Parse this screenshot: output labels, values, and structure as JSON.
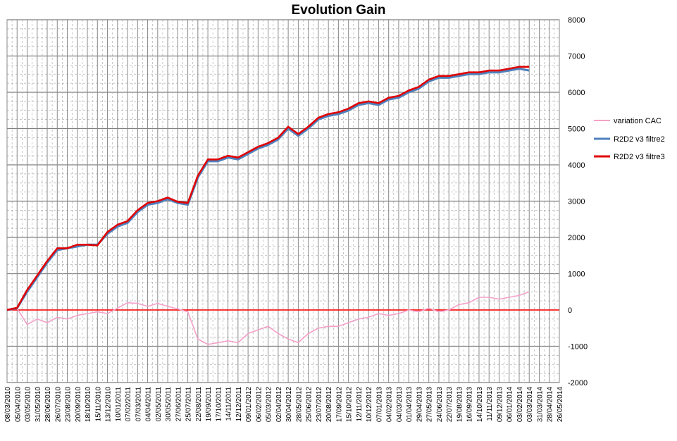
{
  "chart_data": {
    "type": "line",
    "title": "Evolution Gain",
    "xlabel": "",
    "ylabel": "",
    "ylim": [
      -2000,
      8000
    ],
    "y_ticks": [
      8000,
      7000,
      6000,
      5000,
      4000,
      3000,
      2000,
      1000,
      0,
      -1000,
      -2000
    ],
    "y_axis_position": "right",
    "x_tick_labels": [
      "08/03/2010",
      "05/04/2010",
      "03/05/2010",
      "31/05/2010",
      "28/06/2010",
      "26/07/2010",
      "23/08/2010",
      "20/09/2010",
      "18/10/2010",
      "15/11/2010",
      "13/12/2010",
      "10/01/2011",
      "07/02/2011",
      "07/03/2011",
      "04/04/2011",
      "02/05/2011",
      "30/05/2011",
      "27/06/2011",
      "25/07/2011",
      "22/08/2011",
      "19/09/2011",
      "17/10/2011",
      "14/11/2011",
      "12/12/2011",
      "09/01/2012",
      "06/02/2012",
      "05/03/2012",
      "02/04/2012",
      "30/04/2012",
      "28/05/2012",
      "25/06/2012",
      "23/07/2012",
      "20/08/2012",
      "17/09/2012",
      "15/10/2012",
      "12/11/2012",
      "10/12/2012",
      "07/01/2013",
      "04/02/2013",
      "04/03/2013",
      "01/04/2013",
      "29/04/2013",
      "27/05/2013",
      "24/06/2013",
      "22/07/2013",
      "19/08/2013",
      "16/09/2013",
      "14/10/2013",
      "11/11/2013",
      "09/12/2013",
      "06/01/2014",
      "03/02/2014",
      "03/03/2014",
      "31/03/2014",
      "28/04/2014",
      "26/05/2014"
    ],
    "x": [
      0,
      1,
      2,
      3,
      4,
      5,
      6,
      7,
      8,
      9,
      10,
      11,
      12,
      13,
      14,
      15,
      16,
      17,
      18,
      19,
      20,
      21,
      22,
      23,
      24,
      25,
      26,
      27,
      28,
      29,
      30,
      31,
      32,
      33,
      34,
      35,
      36,
      37,
      38,
      39,
      40,
      41,
      42,
      43,
      44,
      45,
      46,
      47,
      48,
      49,
      50,
      51,
      52
    ],
    "xlim": [
      0,
      55
    ],
    "grid": true,
    "legend_position": "right",
    "series": [
      {
        "name": "variation CAC",
        "color": "#f4a0c8",
        "values": [
          0,
          40,
          -400,
          -250,
          -350,
          -200,
          -250,
          -150,
          -100,
          -50,
          -100,
          50,
          200,
          180,
          100,
          180,
          100,
          30,
          -50,
          -800,
          -950,
          -900,
          -850,
          -900,
          -650,
          -550,
          -450,
          -650,
          -800,
          -900,
          -650,
          -500,
          -450,
          -450,
          -350,
          -250,
          -200,
          -100,
          -150,
          -100,
          0,
          -50,
          50,
          -50,
          0,
          150,
          200,
          350,
          350,
          300,
          350,
          400,
          500
        ]
      },
      {
        "name": "R2D2 v3 filtre2",
        "color": "#4f81bd",
        "values": [
          0,
          50,
          500,
          900,
          1300,
          1650,
          1700,
          1750,
          1800,
          1800,
          2100,
          2300,
          2400,
          2700,
          2900,
          2950,
          3050,
          2950,
          2900,
          3650,
          4100,
          4100,
          4200,
          4150,
          4300,
          4450,
          4550,
          4700,
          5000,
          4800,
          5000,
          5250,
          5350,
          5400,
          5500,
          5650,
          5700,
          5650,
          5800,
          5850,
          6000,
          6100,
          6300,
          6400,
          6400,
          6450,
          6500,
          6500,
          6550,
          6550,
          6600,
          6650,
          6600
        ]
      },
      {
        "name": "R2D2 v3 filtre3",
        "color": "#e00000",
        "values": [
          0,
          60,
          550,
          950,
          1350,
          1700,
          1700,
          1800,
          1800,
          1780,
          2150,
          2350,
          2450,
          2750,
          2950,
          3000,
          3100,
          2980,
          2950,
          3700,
          4150,
          4150,
          4250,
          4200,
          4350,
          4500,
          4600,
          4750,
          5050,
          4850,
          5050,
          5300,
          5400,
          5450,
          5550,
          5700,
          5750,
          5700,
          5850,
          5900,
          6050,
          6150,
          6350,
          6450,
          6450,
          6500,
          6550,
          6550,
          6600,
          6600,
          6650,
          6700,
          6700
        ]
      }
    ]
  }
}
